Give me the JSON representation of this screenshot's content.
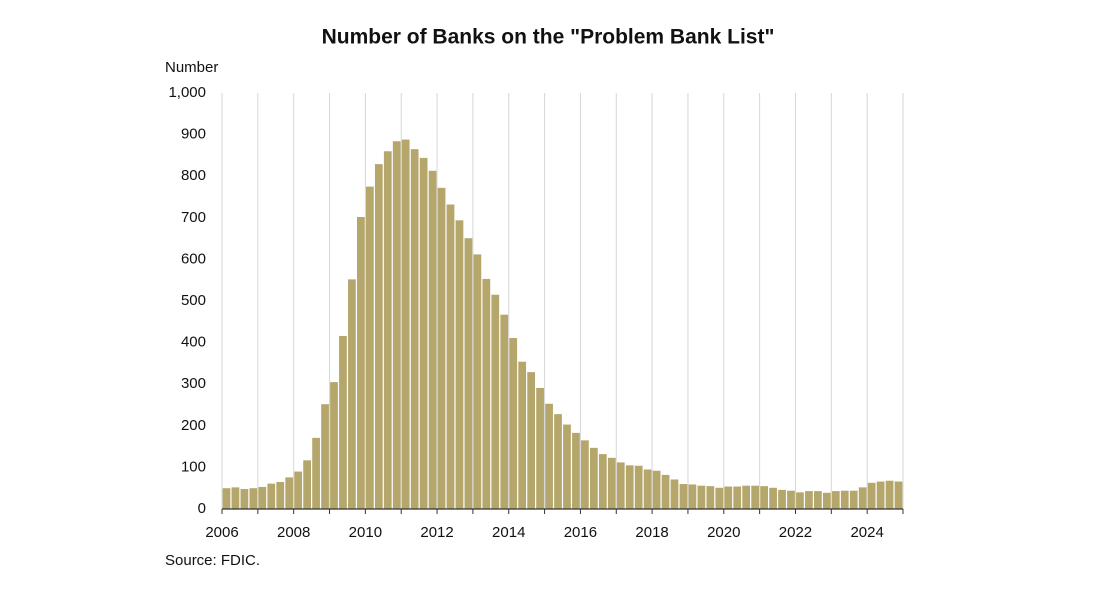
{
  "chart_data": {
    "type": "bar",
    "title": "Number of Banks on the \"Problem Bank List\"",
    "y_label": "Number",
    "source": "Source: FDIC.",
    "x": [
      2006,
      2006.25,
      2006.5,
      2006.75,
      2007,
      2007.25,
      2007.5,
      2007.75,
      2008,
      2008.25,
      2008.5,
      2008.75,
      2009,
      2009.25,
      2009.5,
      2009.75,
      2010,
      2010.25,
      2010.5,
      2010.75,
      2011,
      2011.25,
      2011.5,
      2011.75,
      2012,
      2012.25,
      2012.5,
      2012.75,
      2013,
      2013.25,
      2013.5,
      2013.75,
      2014,
      2014.25,
      2014.5,
      2014.75,
      2015,
      2015.25,
      2015.5,
      2015.75,
      2016,
      2016.25,
      2016.5,
      2016.75,
      2017,
      2017.25,
      2017.5,
      2017.75,
      2018,
      2018.25,
      2018.5,
      2018.75,
      2019,
      2019.25,
      2019.5,
      2019.75,
      2020,
      2020.25,
      2020.5,
      2020.75,
      2021,
      2021.25,
      2021.5,
      2021.75,
      2022,
      2022.25,
      2022.5,
      2022.75,
      2023,
      2023.25,
      2023.5,
      2023.75,
      2024,
      2024.25,
      2024.5,
      2024.75
    ],
    "values": [
      50,
      52,
      48,
      50,
      53,
      61,
      65,
      76,
      90,
      117,
      171,
      252,
      305,
      416,
      552,
      702,
      775,
      829,
      860,
      884,
      888,
      865,
      844,
      813,
      772,
      732,
      694,
      651,
      612,
      553,
      515,
      467,
      411,
      354,
      329,
      291,
      253,
      228,
      203,
      183,
      165,
      147,
      132,
      123,
      112,
      105,
      104,
      95,
      92,
      82,
      71,
      60,
      59,
      56,
      55,
      51,
      54,
      54,
      56,
      56,
      55,
      51,
      46,
      44,
      40,
      43,
      43,
      39,
      43,
      44,
      44,
      52,
      63,
      66,
      68,
      66
    ],
    "bar_width": 0.25,
    "color": "#b5a76c",
    "xlim": [
      2006,
      2025
    ],
    "xticks": [
      2006,
      2008,
      2010,
      2012,
      2014,
      2016,
      2018,
      2020,
      2022,
      2024
    ],
    "ylim": [
      0,
      1000
    ],
    "yticks": [
      0,
      100,
      200,
      300,
      400,
      500,
      600,
      700,
      800,
      900,
      {
        "value": 1000,
        "label": "1,000"
      }
    ],
    "grid": "x"
  }
}
